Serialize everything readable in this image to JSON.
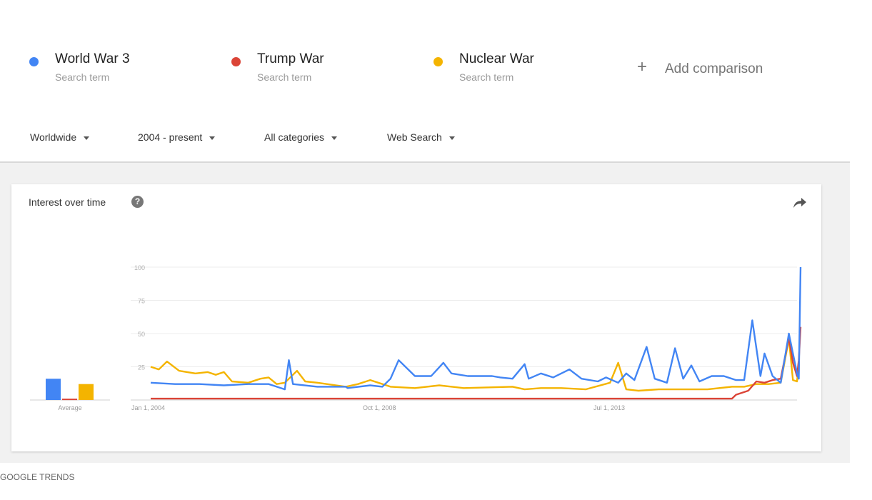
{
  "terms": [
    {
      "name": "World War 3",
      "sub": "Search term",
      "color": "#4285f4"
    },
    {
      "name": "Trump War",
      "sub": "Search term",
      "color": "#db4437"
    },
    {
      "name": "Nuclear War",
      "sub": "Search term",
      "color": "#f4b400"
    }
  ],
  "add_comparison": {
    "icon": "plus-icon",
    "label": "Add comparison"
  },
  "filters": {
    "region": "Worldwide",
    "time": "2004 - present",
    "category": "All categories",
    "search_type": "Web Search"
  },
  "card": {
    "title": "Interest over time",
    "help_icon": "help-icon",
    "share_icon": "share-icon"
  },
  "footer": {
    "text": "GOOGLE TRENDS"
  },
  "chart_data": {
    "type": "line",
    "x_ticks": [
      "Jan 1, 2004",
      "Oct 1, 2008",
      "Jul 1, 2013"
    ],
    "x_range": [
      "2004-01",
      "2017-04"
    ],
    "y_ticks": [
      25,
      50,
      75,
      100
    ],
    "ylim": [
      0,
      100
    ],
    "grid": true,
    "average": {
      "label": "Average",
      "values": [
        16,
        1,
        12
      ]
    },
    "series": [
      {
        "term_index": 0,
        "color": "#4285f4",
        "points": [
          [
            "2004-01",
            13
          ],
          [
            "2004-07",
            12
          ],
          [
            "2005-01",
            12
          ],
          [
            "2005-07",
            11
          ],
          [
            "2006-01",
            12
          ],
          [
            "2006-06",
            12
          ],
          [
            "2006-10",
            8
          ],
          [
            "2006-11",
            30
          ],
          [
            "2006-12",
            12
          ],
          [
            "2007-06",
            10
          ],
          [
            "2008-01",
            10
          ],
          [
            "2008-01",
            9
          ],
          [
            "2008-07",
            11
          ],
          [
            "2008-10",
            10
          ],
          [
            "2008-12",
            16
          ],
          [
            "2009-02",
            30
          ],
          [
            "2009-06",
            18
          ],
          [
            "2009-10",
            18
          ],
          [
            "2010-01",
            28
          ],
          [
            "2010-03",
            20
          ],
          [
            "2010-07",
            18
          ],
          [
            "2011-01",
            18
          ],
          [
            "2011-03",
            17
          ],
          [
            "2011-06",
            16
          ],
          [
            "2011-09",
            27
          ],
          [
            "2011-10",
            16
          ],
          [
            "2012-01",
            20
          ],
          [
            "2012-04",
            17
          ],
          [
            "2012-08",
            23
          ],
          [
            "2012-11",
            16
          ],
          [
            "2013-03",
            14
          ],
          [
            "2013-05",
            17
          ],
          [
            "2013-08",
            13
          ],
          [
            "2013-10",
            20
          ],
          [
            "2013-12",
            15
          ],
          [
            "2014-03",
            40
          ],
          [
            "2014-05",
            16
          ],
          [
            "2014-08",
            13
          ],
          [
            "2014-10",
            39
          ],
          [
            "2014-12",
            16
          ],
          [
            "2015-02",
            26
          ],
          [
            "2015-04",
            14
          ],
          [
            "2015-07",
            18
          ],
          [
            "2015-10",
            18
          ],
          [
            "2016-01",
            15
          ],
          [
            "2016-03",
            15
          ],
          [
            "2016-05",
            60
          ],
          [
            "2016-07",
            18
          ],
          [
            "2016-08",
            35
          ],
          [
            "2016-10",
            18
          ],
          [
            "2016-12",
            13
          ],
          [
            "2017-02",
            50
          ],
          [
            "2017-03",
            35
          ],
          [
            "2017-04",
            20
          ],
          [
            "2017-04",
            16
          ],
          [
            "2017-04",
            100
          ]
        ]
      },
      {
        "term_index": 1,
        "color": "#db4437",
        "points": [
          [
            "2004-01",
            1
          ],
          [
            "2005-01",
            1
          ],
          [
            "2008-01",
            1
          ],
          [
            "2012-01",
            1
          ],
          [
            "2015-12",
            1
          ],
          [
            "2016-01",
            4
          ],
          [
            "2016-04",
            7
          ],
          [
            "2016-06",
            14
          ],
          [
            "2016-08",
            13
          ],
          [
            "2016-10",
            15
          ],
          [
            "2016-12",
            16
          ],
          [
            "2017-02",
            47
          ],
          [
            "2017-03",
            28
          ],
          [
            "2017-04",
            18
          ],
          [
            "2017-04",
            30
          ],
          [
            "2017-04",
            55
          ]
        ]
      },
      {
        "term_index": 2,
        "color": "#f4b400",
        "points": [
          [
            "2004-01",
            25
          ],
          [
            "2004-03",
            23
          ],
          [
            "2004-05",
            29
          ],
          [
            "2004-08",
            22
          ],
          [
            "2004-12",
            20
          ],
          [
            "2005-03",
            21
          ],
          [
            "2005-05",
            19
          ],
          [
            "2005-07",
            21
          ],
          [
            "2005-09",
            14
          ],
          [
            "2006-01",
            13
          ],
          [
            "2006-04",
            16
          ],
          [
            "2006-06",
            17
          ],
          [
            "2006-08",
            12
          ],
          [
            "2006-10",
            13
          ],
          [
            "2007-01",
            22
          ],
          [
            "2007-03",
            14
          ],
          [
            "2007-06",
            13
          ],
          [
            "2008-01",
            10
          ],
          [
            "2008-04",
            12
          ],
          [
            "2008-07",
            15
          ],
          [
            "2008-09",
            13
          ],
          [
            "2008-12",
            10
          ],
          [
            "2009-06",
            9
          ],
          [
            "2009-12",
            11
          ],
          [
            "2010-06",
            9
          ],
          [
            "2011-06",
            10
          ],
          [
            "2011-09",
            8
          ],
          [
            "2012-01",
            9
          ],
          [
            "2012-06",
            9
          ],
          [
            "2012-12",
            8
          ],
          [
            "2013-06",
            13
          ],
          [
            "2013-08",
            28
          ],
          [
            "2013-10",
            8
          ],
          [
            "2014-01",
            7
          ],
          [
            "2014-06",
            8
          ],
          [
            "2014-12",
            8
          ],
          [
            "2015-06",
            8
          ],
          [
            "2015-12",
            10
          ],
          [
            "2016-03",
            10
          ],
          [
            "2016-06",
            12
          ],
          [
            "2016-09",
            12
          ],
          [
            "2016-12",
            13
          ],
          [
            "2017-02",
            46
          ],
          [
            "2017-03",
            15
          ],
          [
            "2017-04",
            14
          ],
          [
            "2017-04",
            27
          ]
        ]
      }
    ]
  }
}
